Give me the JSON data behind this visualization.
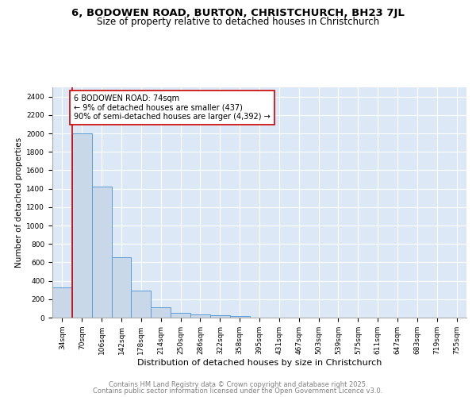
{
  "title": "6, BODOWEN ROAD, BURTON, CHRISTCHURCH, BH23 7JL",
  "subtitle": "Size of property relative to detached houses in Christchurch",
  "xlabel": "Distribution of detached houses by size in Christchurch",
  "ylabel": "Number of detached properties",
  "categories": [
    "34sqm",
    "70sqm",
    "106sqm",
    "142sqm",
    "178sqm",
    "214sqm",
    "250sqm",
    "286sqm",
    "322sqm",
    "358sqm",
    "395sqm",
    "431sqm",
    "467sqm",
    "503sqm",
    "539sqm",
    "575sqm",
    "611sqm",
    "647sqm",
    "683sqm",
    "719sqm",
    "755sqm"
  ],
  "values": [
    325,
    2000,
    1425,
    655,
    290,
    110,
    48,
    38,
    28,
    18,
    0,
    0,
    0,
    0,
    0,
    0,
    0,
    0,
    0,
    0,
    0
  ],
  "bar_color": "#c8d8e8",
  "bar_edge_color": "#5b9bd5",
  "vline_x": 0.5,
  "vline_color": "#cc0000",
  "annotation_text": "6 BODOWEN ROAD: 74sqm\n← 9% of detached houses are smaller (437)\n90% of semi-detached houses are larger (4,392) →",
  "annotation_box_color": "#ffffff",
  "annotation_box_edge": "#cc0000",
  "ylim": [
    0,
    2500
  ],
  "yticks": [
    0,
    200,
    400,
    600,
    800,
    1000,
    1200,
    1400,
    1600,
    1800,
    2000,
    2200,
    2400
  ],
  "background_color": "#dce8f5",
  "grid_color": "#ffffff",
  "footer1": "Contains HM Land Registry data © Crown copyright and database right 2025.",
  "footer2": "Contains public sector information licensed under the Open Government Licence v3.0.",
  "title_fontsize": 9.5,
  "subtitle_fontsize": 8.5,
  "ylabel_fontsize": 7.5,
  "xlabel_fontsize": 8,
  "tick_fontsize": 6.5,
  "annot_fontsize": 7,
  "footer_fontsize": 6,
  "footer_color": "#808080"
}
